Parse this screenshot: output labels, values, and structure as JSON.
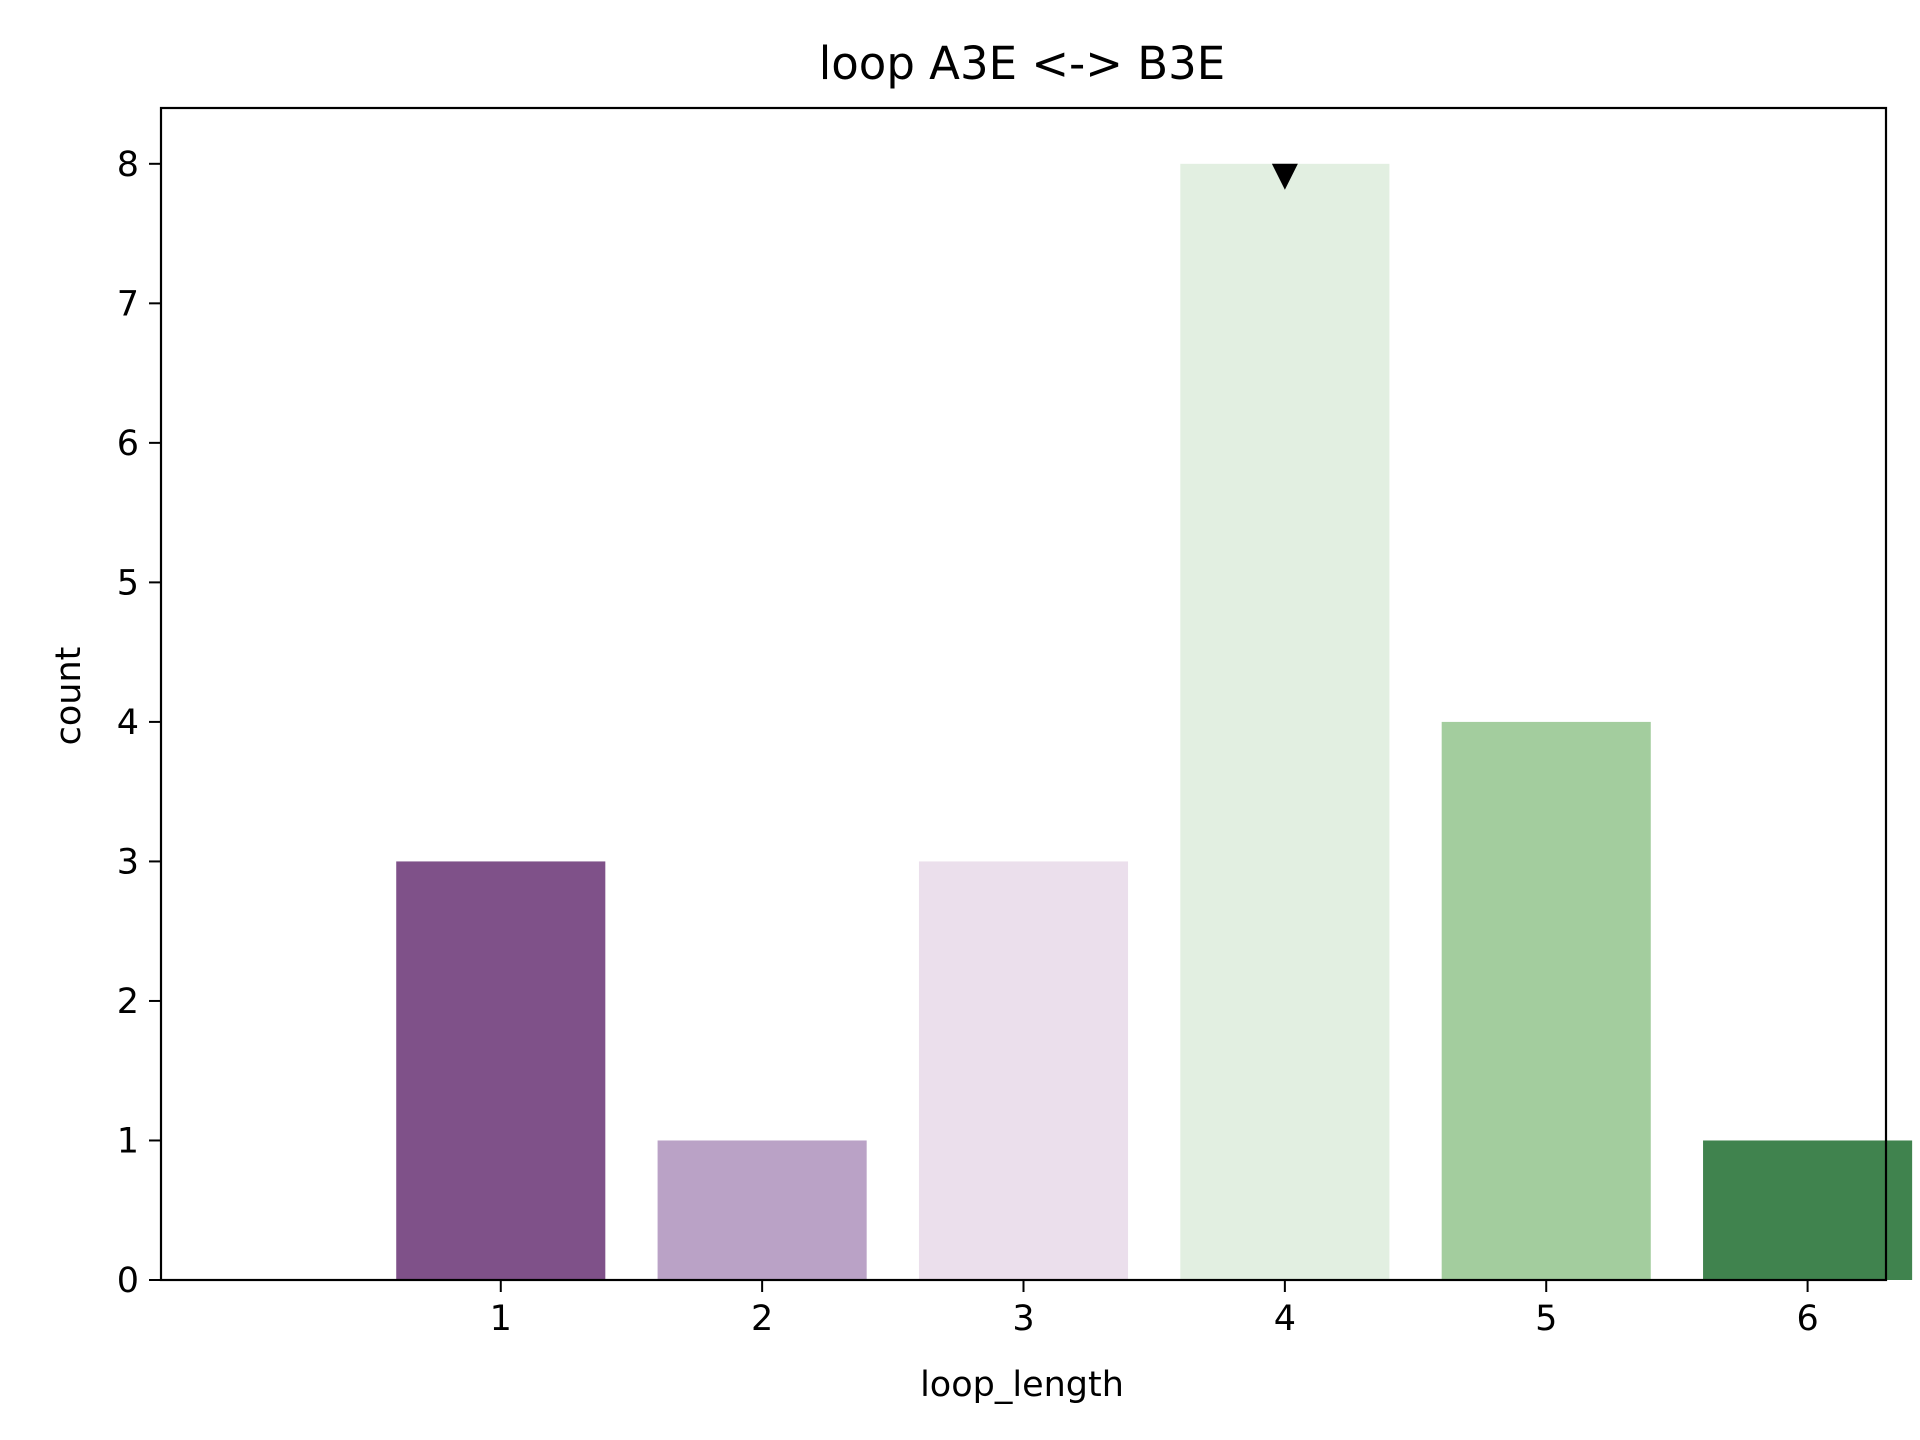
{
  "chart_data": {
    "type": "bar",
    "title": "loop A3E <-> B3E",
    "xlabel": "loop_length",
    "ylabel": "count",
    "categories": [
      "1",
      "2",
      "3",
      "4",
      "5",
      "6"
    ],
    "values": [
      3,
      1,
      3,
      8,
      4,
      1
    ],
    "bar_colors": [
      "#7f5189",
      "#baa2c6",
      "#ebdfec",
      "#e2efe1",
      "#a3cd9e",
      "#40834e"
    ],
    "ylim": [
      0,
      8.4
    ],
    "yticks": [
      0,
      1,
      2,
      3,
      4,
      5,
      6,
      7,
      8
    ],
    "grid": false,
    "legend": "none",
    "annotations": [
      {
        "type": "marker",
        "shape": "down-triangle",
        "category": "4",
        "value": 8,
        "color": "#000000"
      }
    ]
  }
}
